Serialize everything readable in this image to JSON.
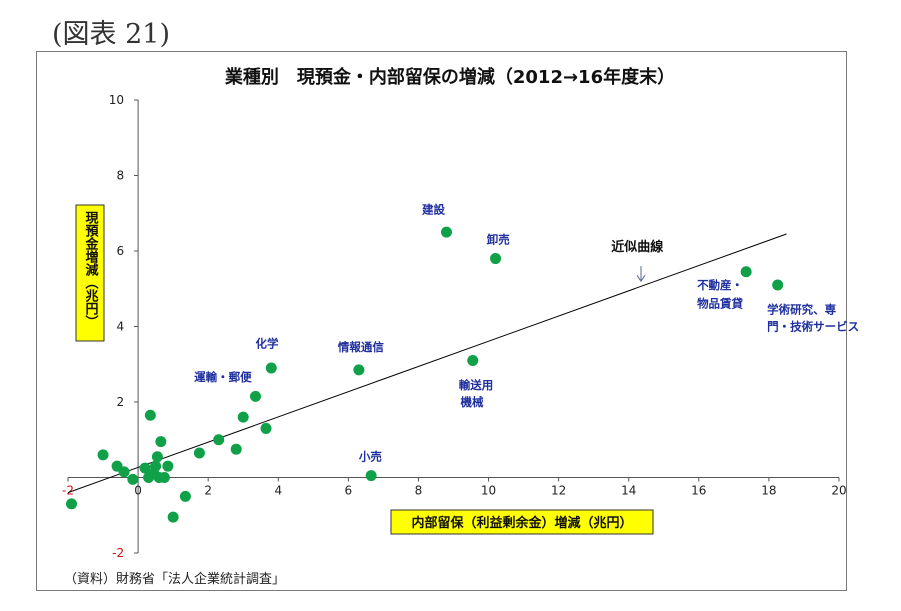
{
  "figure_label": "(図表 21)",
  "source": "（資料）財務省「法人企業統計調査」",
  "chart_data": {
    "type": "scatter",
    "title": "業種別　現預金・内部留保の増減（2012→16年度末）",
    "xlabel": "内部留保（利益剰余金）増減（兆円）",
    "ylabel": "現預金増減（兆円）",
    "xlim": [
      -2,
      20
    ],
    "ylim": [
      -2,
      10
    ],
    "x_ticks": [
      "-2",
      "0",
      "2",
      "4",
      "6",
      "8",
      "10",
      "12",
      "14",
      "16",
      "18",
      "20"
    ],
    "y_ticks": [
      "-2",
      "2",
      "4",
      "6",
      "8",
      "10"
    ],
    "grid": false,
    "point_color": "#10a048",
    "label_color": "#1f2f9e",
    "label_box_color": "#ffff00",
    "points": [
      {
        "x": -1.9,
        "y": -0.7
      },
      {
        "x": -1.0,
        "y": 0.6
      },
      {
        "x": -0.6,
        "y": 0.3
      },
      {
        "x": -0.4,
        "y": 0.15
      },
      {
        "x": -0.15,
        "y": -0.05
      },
      {
        "x": 0.2,
        "y": 0.25
      },
      {
        "x": 0.3,
        "y": 0.0
      },
      {
        "x": 0.35,
        "y": 1.65
      },
      {
        "x": 0.45,
        "y": 0.1
      },
      {
        "x": 0.5,
        "y": 0.3
      },
      {
        "x": 0.55,
        "y": 0.55
      },
      {
        "x": 0.6,
        "y": 0.0
      },
      {
        "x": 0.65,
        "y": 0.95
      },
      {
        "x": 0.75,
        "y": 0.0
      },
      {
        "x": 0.85,
        "y": 0.3
      },
      {
        "x": 1.0,
        "y": -1.05
      },
      {
        "x": 1.35,
        "y": -0.5
      },
      {
        "x": 1.75,
        "y": 0.65
      },
      {
        "x": 2.3,
        "y": 1.0
      },
      {
        "x": 2.8,
        "y": 0.75
      },
      {
        "x": 3.0,
        "y": 1.6
      },
      {
        "x": 3.35,
        "y": 2.15
      },
      {
        "x": 3.65,
        "y": 1.3
      },
      {
        "x": 3.8,
        "y": 2.9
      },
      {
        "x": 6.3,
        "y": 2.85
      },
      {
        "x": 6.65,
        "y": 0.05
      },
      {
        "x": 8.8,
        "y": 6.5
      },
      {
        "x": 9.55,
        "y": 3.1
      },
      {
        "x": 10.2,
        "y": 5.8
      },
      {
        "x": 17.35,
        "y": 5.45
      },
      {
        "x": 18.25,
        "y": 5.1
      }
    ],
    "annotations": [
      {
        "text": "建設",
        "x": 8.1,
        "y": 7.0
      },
      {
        "text": "卸売",
        "x": 9.95,
        "y": 6.2
      },
      {
        "text": "不動産・",
        "x": 15.95,
        "y": 5.0
      },
      {
        "text": "物品賃貸",
        "x": 15.95,
        "y": 4.5
      },
      {
        "text": "学術研究、専",
        "x": 17.95,
        "y": 4.35
      },
      {
        "text": "門・技術サービス",
        "x": 17.95,
        "y": 3.9
      },
      {
        "text": "化学",
        "x": 3.35,
        "y": 3.45
      },
      {
        "text": "情報通信",
        "x": 5.7,
        "y": 3.35
      },
      {
        "text": "運輸・郵便",
        "x": 1.6,
        "y": 2.55
      },
      {
        "text": "輸送用",
        "x": 9.15,
        "y": 2.35
      },
      {
        "text": "機械",
        "x": 9.2,
        "y": 1.9
      },
      {
        "text": "小売",
        "x": 6.3,
        "y": 0.45
      }
    ],
    "trendline": {
      "label": "近似曲線",
      "x": [
        -2,
        18.5
      ],
      "y": [
        -0.4,
        6.45
      ],
      "label_x": 13.5,
      "label_y": 6.0,
      "arrow_x": 14.35,
      "arrow_from_y": 5.6,
      "arrow_to_y": 5.2
    }
  }
}
